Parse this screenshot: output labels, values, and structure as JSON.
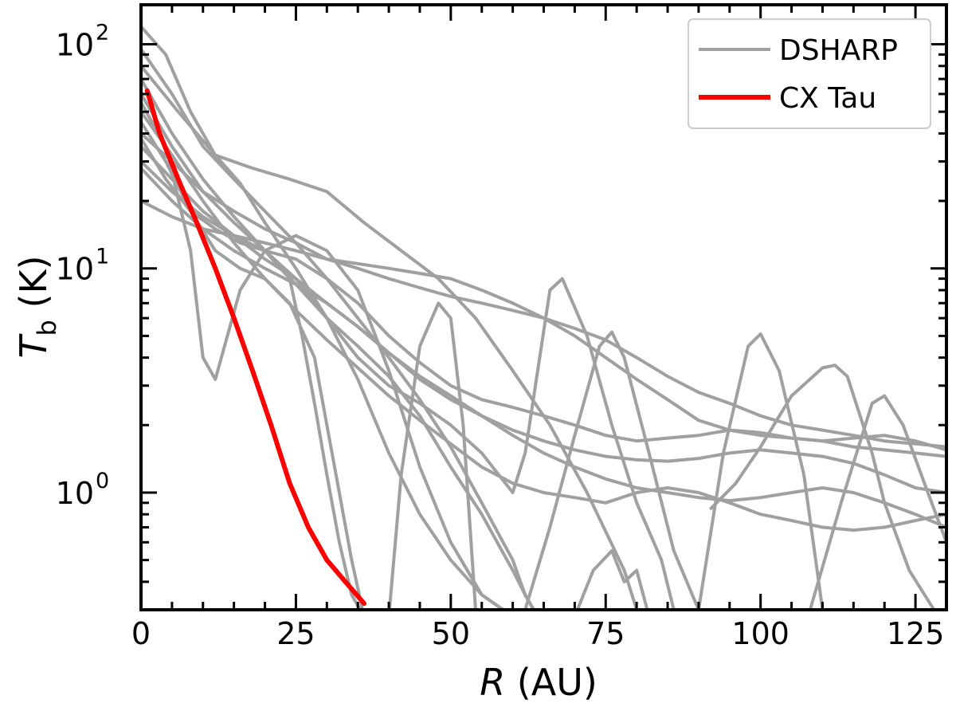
{
  "chart_data": {
    "type": "line",
    "title": "",
    "xlabel": "R (AU)",
    "ylabel": "T_b (K)",
    "x_axis": {
      "label_var": "R",
      "label_unit": "(AU)",
      "lim": [
        0,
        130
      ],
      "ticks": [
        0,
        25,
        50,
        75,
        100,
        125
      ],
      "tick_labels": [
        "0",
        "25",
        "50",
        "75",
        "100",
        "125"
      ]
    },
    "y_axis": {
      "label_var": "T",
      "label_sub": "b",
      "label_unit": "(K)",
      "scale": "log",
      "lim": [
        0.3,
        150
      ],
      "ticks": [
        1,
        10,
        100
      ],
      "tick_bases": [
        "10",
        "10",
        "10"
      ],
      "tick_exps": [
        "0",
        "1",
        "2"
      ]
    },
    "legend": {
      "placement": "top-right",
      "entries": [
        {
          "label": "DSHARP",
          "color": "#a0a0a0"
        },
        {
          "label": "CX Tau",
          "color": "#ff0000"
        }
      ]
    },
    "colors": {
      "dsharp": "#a0a0a0",
      "cxtau": "#ff0000"
    },
    "series": [
      {
        "name": "CX Tau",
        "group": "cxtau",
        "x": [
          1,
          3,
          6,
          9,
          12,
          15,
          18,
          21,
          24,
          27,
          30,
          33,
          36
        ],
        "y": [
          62,
          40,
          25,
          16,
          10,
          6,
          3.5,
          2,
          1.1,
          0.7,
          0.5,
          0.4,
          0.32
        ]
      },
      {
        "name": "DSHARP 1",
        "group": "dsharp",
        "x": [
          0,
          4,
          8,
          12,
          16,
          20,
          25,
          30,
          35,
          40,
          45,
          50,
          55,
          60
        ],
        "y": [
          120,
          90,
          50,
          32,
          24,
          16,
          10,
          6,
          3.2,
          1.5,
          0.8,
          0.5,
          0.35,
          0.28
        ]
      },
      {
        "name": "DSHARP 2",
        "group": "dsharp",
        "x": [
          0,
          5,
          10,
          15,
          20,
          25,
          30,
          35,
          40,
          45,
          50,
          55,
          60,
          62,
          64
        ],
        "y": [
          95,
          60,
          35,
          25,
          18,
          13,
          9,
          6,
          4,
          2.6,
          1.6,
          0.9,
          0.5,
          0.35,
          0.28
        ]
      },
      {
        "name": "DSHARP 3",
        "group": "dsharp",
        "x": [
          0,
          6,
          12,
          18,
          24,
          30,
          36,
          42,
          48,
          54,
          60,
          66,
          72,
          78,
          80
        ],
        "y": [
          80,
          50,
          32,
          28,
          25,
          22,
          16,
          12,
          9,
          6,
          3.5,
          2,
          1,
          0.45,
          0.3
        ]
      },
      {
        "name": "DSHARP 4",
        "group": "dsharp",
        "x": [
          0,
          5,
          10,
          15,
          20,
          25,
          30,
          35,
          40,
          45,
          50,
          55,
          60,
          65,
          70,
          75,
          80,
          85,
          90,
          95,
          100,
          105,
          110,
          115,
          120,
          125,
          130
        ],
        "y": [
          40,
          30,
          22,
          18,
          15,
          13,
          11,
          10,
          9,
          8.2,
          7.5,
          7,
          6.5,
          6,
          5.4,
          4.8,
          4,
          3.3,
          2.8,
          2.5,
          2.2,
          2,
          1.9,
          1.8,
          1.7,
          1.65,
          1.6
        ]
      },
      {
        "name": "DSHARP 5",
        "group": "dsharp",
        "x": [
          0,
          5,
          10,
          15,
          20,
          25,
          30,
          35,
          40,
          45,
          50,
          55,
          60,
          65,
          70,
          75,
          80,
          85,
          90,
          95,
          100,
          105,
          110,
          115,
          120,
          125,
          130
        ],
        "y": [
          20,
          17,
          15,
          14,
          13,
          12,
          11,
          10.5,
          10,
          9.5,
          9,
          8,
          7,
          6,
          5,
          4,
          3.2,
          2.6,
          2.1,
          1.9,
          1.8,
          1.75,
          1.7,
          1.75,
          1.8,
          1.7,
          1.55
        ]
      },
      {
        "name": "DSHARP 6",
        "group": "dsharp",
        "x": [
          0,
          4,
          8,
          10,
          12,
          16,
          20,
          25,
          30,
          35,
          40,
          45,
          50,
          55,
          60
        ],
        "y": [
          55,
          35,
          12,
          4,
          3.2,
          8,
          12,
          14,
          12,
          8,
          3.5,
          1.3,
          0.6,
          0.35,
          0.28
        ]
      },
      {
        "name": "DSHARP 7",
        "group": "dsharp",
        "x": [
          0,
          4,
          8,
          12,
          16,
          20,
          24,
          28,
          30,
          32,
          34,
          36
        ],
        "y": [
          45,
          30,
          18,
          12,
          10,
          9,
          7,
          4,
          2,
          1,
          0.5,
          0.28
        ]
      },
      {
        "name": "DSHARP 8",
        "group": "dsharp",
        "x": [
          0,
          4,
          8,
          12,
          16,
          20,
          24,
          26,
          28,
          30,
          32,
          34,
          36
        ],
        "y": [
          38,
          25,
          18,
          15,
          13,
          12,
          9,
          5,
          2.5,
          1.2,
          0.6,
          0.35,
          0.28
        ]
      },
      {
        "name": "DSHARP 9",
        "group": "dsharp",
        "x": [
          0,
          5,
          10,
          15,
          20,
          25,
          30,
          35,
          40,
          45,
          50,
          55,
          60,
          65,
          70,
          75,
          80,
          85,
          90,
          95,
          100,
          105,
          110,
          115,
          120,
          125,
          130
        ],
        "y": [
          30,
          22,
          17,
          14,
          12,
          11,
          9,
          7,
          5,
          3.8,
          3,
          2.6,
          2.4,
          2.2,
          2,
          1.8,
          1.7,
          1.75,
          1.8,
          1.9,
          1.85,
          1.75,
          1.7,
          1.6,
          1.55,
          1.5,
          1.45
        ]
      },
      {
        "name": "DSHARP 10",
        "group": "dsharp",
        "x": [
          0,
          5,
          10,
          15,
          20,
          25,
          30,
          35,
          40,
          45,
          50,
          55,
          60,
          65,
          70,
          75,
          80,
          85,
          90,
          95,
          100,
          105,
          110,
          115,
          120,
          125,
          130
        ],
        "y": [
          35,
          25,
          18,
          14,
          11,
          9,
          7,
          5.5,
          4.2,
          3.2,
          2.6,
          2.2,
          1.9,
          1.7,
          1.55,
          1.45,
          1.4,
          1.38,
          1.42,
          1.5,
          1.55,
          1.5,
          1.45,
          1.35,
          1.2,
          1.05,
          1.0
        ]
      },
      {
        "name": "DSHARP 11",
        "group": "dsharp",
        "x": [
          0,
          5,
          10,
          15,
          20,
          25,
          30,
          35,
          40,
          45,
          50,
          55,
          60,
          65,
          70,
          75,
          80,
          85,
          90,
          95,
          100,
          105,
          110,
          115,
          120,
          125,
          130
        ],
        "y": [
          28,
          20,
          15,
          12,
          10,
          8.5,
          7,
          5.5,
          4.2,
          3.3,
          2.7,
          2.2,
          1.8,
          1.5,
          1.3,
          1.15,
          1.05,
          1.0,
          0.95,
          0.92,
          0.95,
          1.0,
          1.05,
          1.0,
          0.9,
          0.8,
          0.7
        ]
      },
      {
        "name": "DSHARP 12",
        "group": "dsharp",
        "x": [
          0,
          5,
          10,
          15,
          20,
          25,
          30,
          35,
          40,
          45,
          50,
          55,
          60,
          65,
          70,
          75,
          80,
          85,
          90,
          95,
          100,
          105,
          110,
          115,
          120,
          125,
          130
        ],
        "y": [
          50,
          32,
          20,
          13,
          9,
          6.5,
          4.8,
          3.6,
          2.7,
          2.1,
          1.65,
          1.3,
          1.1,
          1.0,
          0.95,
          0.9,
          1.0,
          1.05,
          1.0,
          0.9,
          0.8,
          0.75,
          0.7,
          0.68,
          0.7,
          0.75,
          0.8
        ]
      },
      {
        "name": "DSHARP 13",
        "group": "dsharp",
        "x": [
          0,
          5,
          10,
          15,
          20,
          25,
          30,
          35,
          40,
          45,
          50,
          55,
          60,
          62,
          66,
          68,
          72,
          76,
          80,
          84,
          86
        ],
        "y": [
          60,
          35,
          22,
          16,
          12,
          9,
          6,
          4,
          3,
          2.5,
          2,
          1.5,
          1,
          1.5,
          8,
          9,
          5,
          2,
          0.9,
          0.5,
          0.3
        ]
      },
      {
        "name": "DSHARP 14",
        "group": "dsharp",
        "x": [
          0,
          5,
          10,
          15,
          20,
          25,
          30,
          35,
          40,
          45,
          50,
          55,
          60,
          62,
          64
        ],
        "y": [
          70,
          40,
          25,
          17,
          12,
          8.5,
          6,
          4.5,
          3.3,
          2.2,
          1.3,
          0.8,
          0.45,
          0.35,
          0.28
        ]
      },
      {
        "name": "DSHARP 15",
        "group": "dsharp",
        "x": [
          62,
          66,
          70,
          74,
          76,
          78,
          82,
          86,
          90
        ],
        "y": [
          0.3,
          0.7,
          1.8,
          4.5,
          5.2,
          4,
          1.5,
          0.55,
          0.3
        ]
      },
      {
        "name": "DSHARP 16",
        "group": "dsharp",
        "x": [
          90,
          94,
          98,
          100,
          103,
          107,
          110
        ],
        "y": [
          0.3,
          1.5,
          4.5,
          5.1,
          3.5,
          1.2,
          0.3
        ]
      },
      {
        "name": "DSHARP 17",
        "group": "dsharp",
        "x": [
          92,
          96,
          100,
          105,
          110,
          112,
          114,
          118,
          120,
          124,
          128,
          130
        ],
        "y": [
          0.85,
          1.1,
          1.6,
          2.7,
          3.6,
          3.7,
          3.3,
          1.5,
          0.9,
          0.45,
          0.3,
          0.28
        ]
      },
      {
        "name": "DSHARP 18",
        "group": "dsharp",
        "x": [
          108,
          113,
          118,
          120,
          123,
          127,
          130
        ],
        "y": [
          0.3,
          0.9,
          2.5,
          2.7,
          2.0,
          1.0,
          0.6
        ]
      },
      {
        "name": "DSHARP 19",
        "group": "dsharp",
        "x": [
          40,
          42,
          45,
          48,
          50,
          52,
          54
        ],
        "y": [
          0.28,
          1.2,
          4.5,
          7,
          6,
          2,
          0.3
        ]
      },
      {
        "name": "DSHARP 20",
        "group": "dsharp",
        "x": [
          70,
          73,
          76,
          78,
          80,
          82
        ],
        "y": [
          0.28,
          0.45,
          0.55,
          0.4,
          0.45,
          0.28
        ]
      }
    ]
  }
}
